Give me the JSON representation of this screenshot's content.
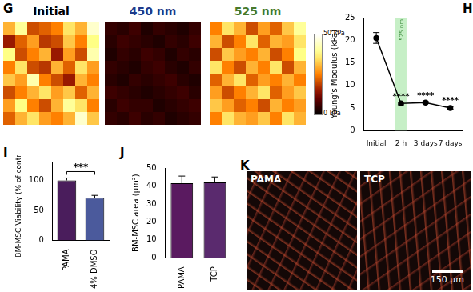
{
  "panel_labels": [
    "G",
    "H",
    "I",
    "J",
    "K"
  ],
  "heatmaps": {
    "maps": [
      {
        "title": "Initial",
        "color": "#000000",
        "cells": [
          [
            30,
            40,
            20,
            22,
            25,
            35,
            30,
            45
          ],
          [
            15,
            22,
            28,
            18,
            20,
            32,
            25,
            38
          ],
          [
            38,
            20,
            25,
            30,
            15,
            28,
            20,
            42
          ],
          [
            25,
            35,
            20,
            18,
            30,
            22,
            35,
            28
          ],
          [
            32,
            28,
            42,
            25,
            20,
            15,
            30,
            25
          ],
          [
            20,
            25,
            30,
            35,
            28,
            32,
            22,
            30
          ],
          [
            28,
            38,
            25,
            20,
            30,
            40,
            35,
            25
          ],
          [
            22,
            30,
            35,
            28,
            25,
            30,
            45,
            32
          ]
        ]
      },
      {
        "title": "450 nm",
        "color": "#1f3a8a",
        "cells": [
          [
            5,
            4,
            6,
            3,
            5,
            4,
            3,
            5
          ],
          [
            4,
            6,
            5,
            4,
            3,
            5,
            4,
            6
          ],
          [
            3,
            5,
            4,
            6,
            5,
            3,
            5,
            4
          ],
          [
            5,
            4,
            3,
            5,
            6,
            4,
            3,
            5
          ],
          [
            4,
            3,
            5,
            4,
            5,
            6,
            4,
            3
          ],
          [
            6,
            5,
            4,
            3,
            4,
            5,
            6,
            4
          ],
          [
            4,
            6,
            5,
            5,
            3,
            4,
            5,
            6
          ],
          [
            5,
            4,
            6,
            4,
            5,
            3,
            4,
            5
          ]
        ]
      },
      {
        "title": "525 nm",
        "color": "#4a7a2a",
        "cells": [
          [
            25,
            35,
            30,
            20,
            28,
            22,
            32,
            40
          ],
          [
            30,
            20,
            25,
            35,
            22,
            30,
            28,
            35
          ],
          [
            20,
            32,
            28,
            25,
            30,
            20,
            25,
            38
          ],
          [
            35,
            25,
            20,
            30,
            25,
            35,
            20,
            30
          ],
          [
            22,
            30,
            35,
            22,
            28,
            25,
            30,
            25
          ],
          [
            28,
            20,
            25,
            30,
            35,
            22,
            28,
            32
          ],
          [
            32,
            28,
            22,
            25,
            20,
            30,
            25,
            28
          ],
          [
            25,
            35,
            30,
            28,
            32,
            25,
            35,
            30
          ]
        ]
      }
    ],
    "colorbar": {
      "range": [
        0,
        50
      ],
      "ticks": [
        {
          "value": 50,
          "label": "50 kPa"
        },
        {
          "value": 0,
          "label": "0 kPa"
        }
      ]
    }
  },
  "chart_data": [
    {
      "type": "line",
      "y_label": "Young's Modulus (kPa)",
      "categories": [
        "Initial",
        "2 h",
        "3 days",
        "7 days"
      ],
      "values": [
        20.5,
        6,
        6.2,
        5
      ],
      "errors": [
        1.2,
        0.3,
        0.2,
        0.3
      ],
      "color": "#000000",
      "marker": "circle",
      "ylim": [
        0,
        25
      ],
      "yticks": [
        0,
        5,
        10,
        15,
        20,
        25
      ],
      "annotations": [
        {
          "category": "2 h",
          "text": "****"
        },
        {
          "category": "3 days",
          "text": "****"
        },
        {
          "category": "7 days",
          "text": "****"
        }
      ],
      "band": {
        "category": "2 h",
        "text": "525 nm",
        "color": "#c6efc6"
      }
    },
    {
      "type": "bar",
      "y_label": "BM-MSC Viability (% of control)",
      "categories": [
        "PAMA",
        "4% DMSO"
      ],
      "values": [
        100,
        71
      ],
      "errors": [
        4,
        4
      ],
      "colors": [
        "#4a1d5c",
        "#4b5a9c"
      ],
      "ylim": [
        0,
        130
      ],
      "yticks": [
        0,
        50,
        100
      ],
      "significance": {
        "between": [
          "PAMA",
          "4% DMSO"
        ],
        "text": "***"
      }
    },
    {
      "type": "bar",
      "y_label": "BM-MSC area (µm²)",
      "categories": [
        "PAMA",
        "TCP"
      ],
      "values": [
        41.5,
        42
      ],
      "errors": [
        4,
        3
      ],
      "colors": [
        "#5a1a60",
        "#5a2a6e"
      ],
      "ylim": [
        0,
        50
      ],
      "yticks": [
        0,
        10,
        20,
        30,
        40,
        50
      ]
    }
  ],
  "images": [
    {
      "label": "PAMA"
    },
    {
      "label": "TCP",
      "scale_bar": "150 µm"
    }
  ]
}
